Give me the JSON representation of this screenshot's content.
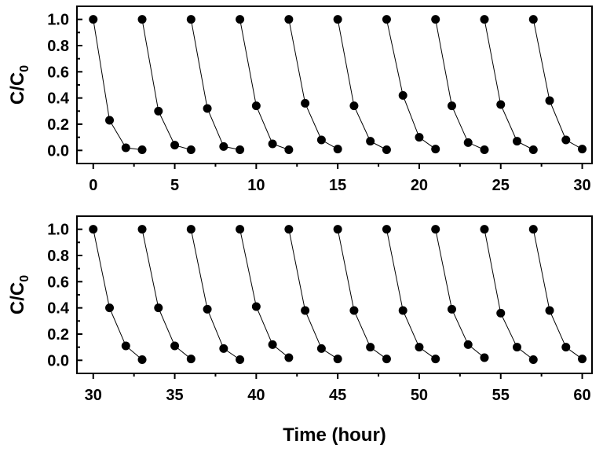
{
  "chart_data": [
    {
      "type": "line",
      "xlim": [
        -1,
        30.6
      ],
      "ylim": [
        -0.1,
        1.1
      ],
      "xticks": [
        "0",
        "5",
        "10",
        "15",
        "20",
        "25",
        "30"
      ],
      "yticks": [
        "0.0",
        "0.2",
        "0.4",
        "0.6",
        "0.8",
        "1.0"
      ],
      "ylabel": "C/C",
      "ylabel_sub": "0",
      "xlabel": "",
      "grid": false,
      "series": [
        {
          "x": [
            0,
            1,
            2,
            3
          ],
          "y": [
            1.0,
            0.23,
            0.02,
            0.005
          ]
        },
        {
          "x": [
            3,
            4,
            5,
            6
          ],
          "y": [
            1.0,
            0.3,
            0.04,
            0.005
          ]
        },
        {
          "x": [
            6,
            7,
            8,
            9
          ],
          "y": [
            1.0,
            0.32,
            0.03,
            0.005
          ]
        },
        {
          "x": [
            9,
            10,
            11,
            12
          ],
          "y": [
            1.0,
            0.34,
            0.05,
            0.005
          ]
        },
        {
          "x": [
            12,
            13,
            14,
            15
          ],
          "y": [
            1.0,
            0.36,
            0.08,
            0.01
          ]
        },
        {
          "x": [
            15,
            16,
            17,
            18
          ],
          "y": [
            1.0,
            0.34,
            0.07,
            0.005
          ]
        },
        {
          "x": [
            18,
            19,
            20,
            21
          ],
          "y": [
            1.0,
            0.42,
            0.1,
            0.01
          ]
        },
        {
          "x": [
            21,
            22,
            23,
            24
          ],
          "y": [
            1.0,
            0.34,
            0.06,
            0.005
          ]
        },
        {
          "x": [
            24,
            25,
            26,
            27
          ],
          "y": [
            1.0,
            0.35,
            0.07,
            0.005
          ]
        },
        {
          "x": [
            27,
            28,
            29,
            30
          ],
          "y": [
            1.0,
            0.38,
            0.08,
            0.01
          ]
        }
      ]
    },
    {
      "type": "line",
      "xlim": [
        29,
        60.6
      ],
      "ylim": [
        -0.1,
        1.1
      ],
      "xticks": [
        "30",
        "35",
        "40",
        "45",
        "50",
        "55",
        "60"
      ],
      "yticks": [
        "0.0",
        "0.2",
        "0.4",
        "0.6",
        "0.8",
        "1.0"
      ],
      "ylabel": "C/C",
      "ylabel_sub": "0",
      "xlabel": "Time (hour)",
      "grid": false,
      "series": [
        {
          "x": [
            30,
            31,
            32,
            33
          ],
          "y": [
            1.0,
            0.4,
            0.11,
            0.005
          ]
        },
        {
          "x": [
            33,
            34,
            35,
            36
          ],
          "y": [
            1.0,
            0.4,
            0.11,
            0.01
          ]
        },
        {
          "x": [
            36,
            37,
            38,
            39
          ],
          "y": [
            1.0,
            0.39,
            0.09,
            0.005
          ]
        },
        {
          "x": [
            39,
            40,
            41,
            42
          ],
          "y": [
            1.0,
            0.41,
            0.12,
            0.02
          ]
        },
        {
          "x": [
            42,
            43,
            44,
            45
          ],
          "y": [
            1.0,
            0.38,
            0.09,
            0.01
          ]
        },
        {
          "x": [
            45,
            46,
            47,
            48
          ],
          "y": [
            1.0,
            0.38,
            0.1,
            0.01
          ]
        },
        {
          "x": [
            48,
            49,
            50,
            51
          ],
          "y": [
            1.0,
            0.38,
            0.1,
            0.01
          ]
        },
        {
          "x": [
            51,
            52,
            53,
            54
          ],
          "y": [
            1.0,
            0.39,
            0.12,
            0.02
          ]
        },
        {
          "x": [
            54,
            55,
            56,
            57
          ],
          "y": [
            1.0,
            0.36,
            0.1,
            0.005
          ]
        },
        {
          "x": [
            57,
            58,
            59,
            60
          ],
          "y": [
            1.0,
            0.38,
            0.1,
            0.01
          ]
        }
      ]
    }
  ]
}
